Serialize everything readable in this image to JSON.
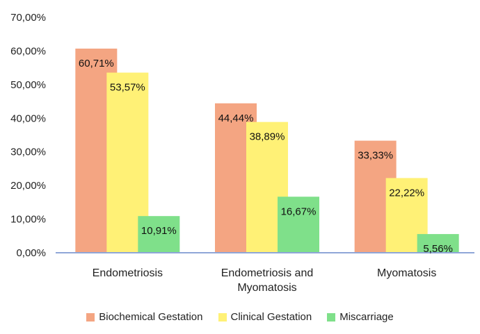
{
  "chart_data": {
    "type": "bar",
    "categories": [
      [
        "Endometriosis"
      ],
      [
        "Endometriosis and",
        "Myomatosis"
      ],
      [
        "Myomatosis"
      ]
    ],
    "series": [
      {
        "name": "Biochemical Gestation",
        "color": "#f4a582",
        "values": [
          60.71,
          44.44,
          33.33
        ],
        "labels": [
          "60,71%",
          "44,44%",
          "33,33%"
        ]
      },
      {
        "name": "Clinical Gestation",
        "color": "#fff176",
        "values": [
          53.57,
          38.89,
          22.22
        ],
        "labels": [
          "53,57%",
          "38,89%",
          "22,22%"
        ]
      },
      {
        "name": "Miscarriage",
        "color": "#7fe08a",
        "values": [
          10.91,
          16.67,
          5.56
        ],
        "labels": [
          "10,91%",
          "16,67%",
          "5,56%"
        ]
      }
    ],
    "ylim": [
      0,
      70
    ],
    "yticks": [
      "0,00%",
      "10,00%",
      "20,00%",
      "30,00%",
      "40,00%",
      "50,00%",
      "60,00%",
      "70,00%"
    ],
    "grid": false,
    "legend_position": "bottom"
  }
}
